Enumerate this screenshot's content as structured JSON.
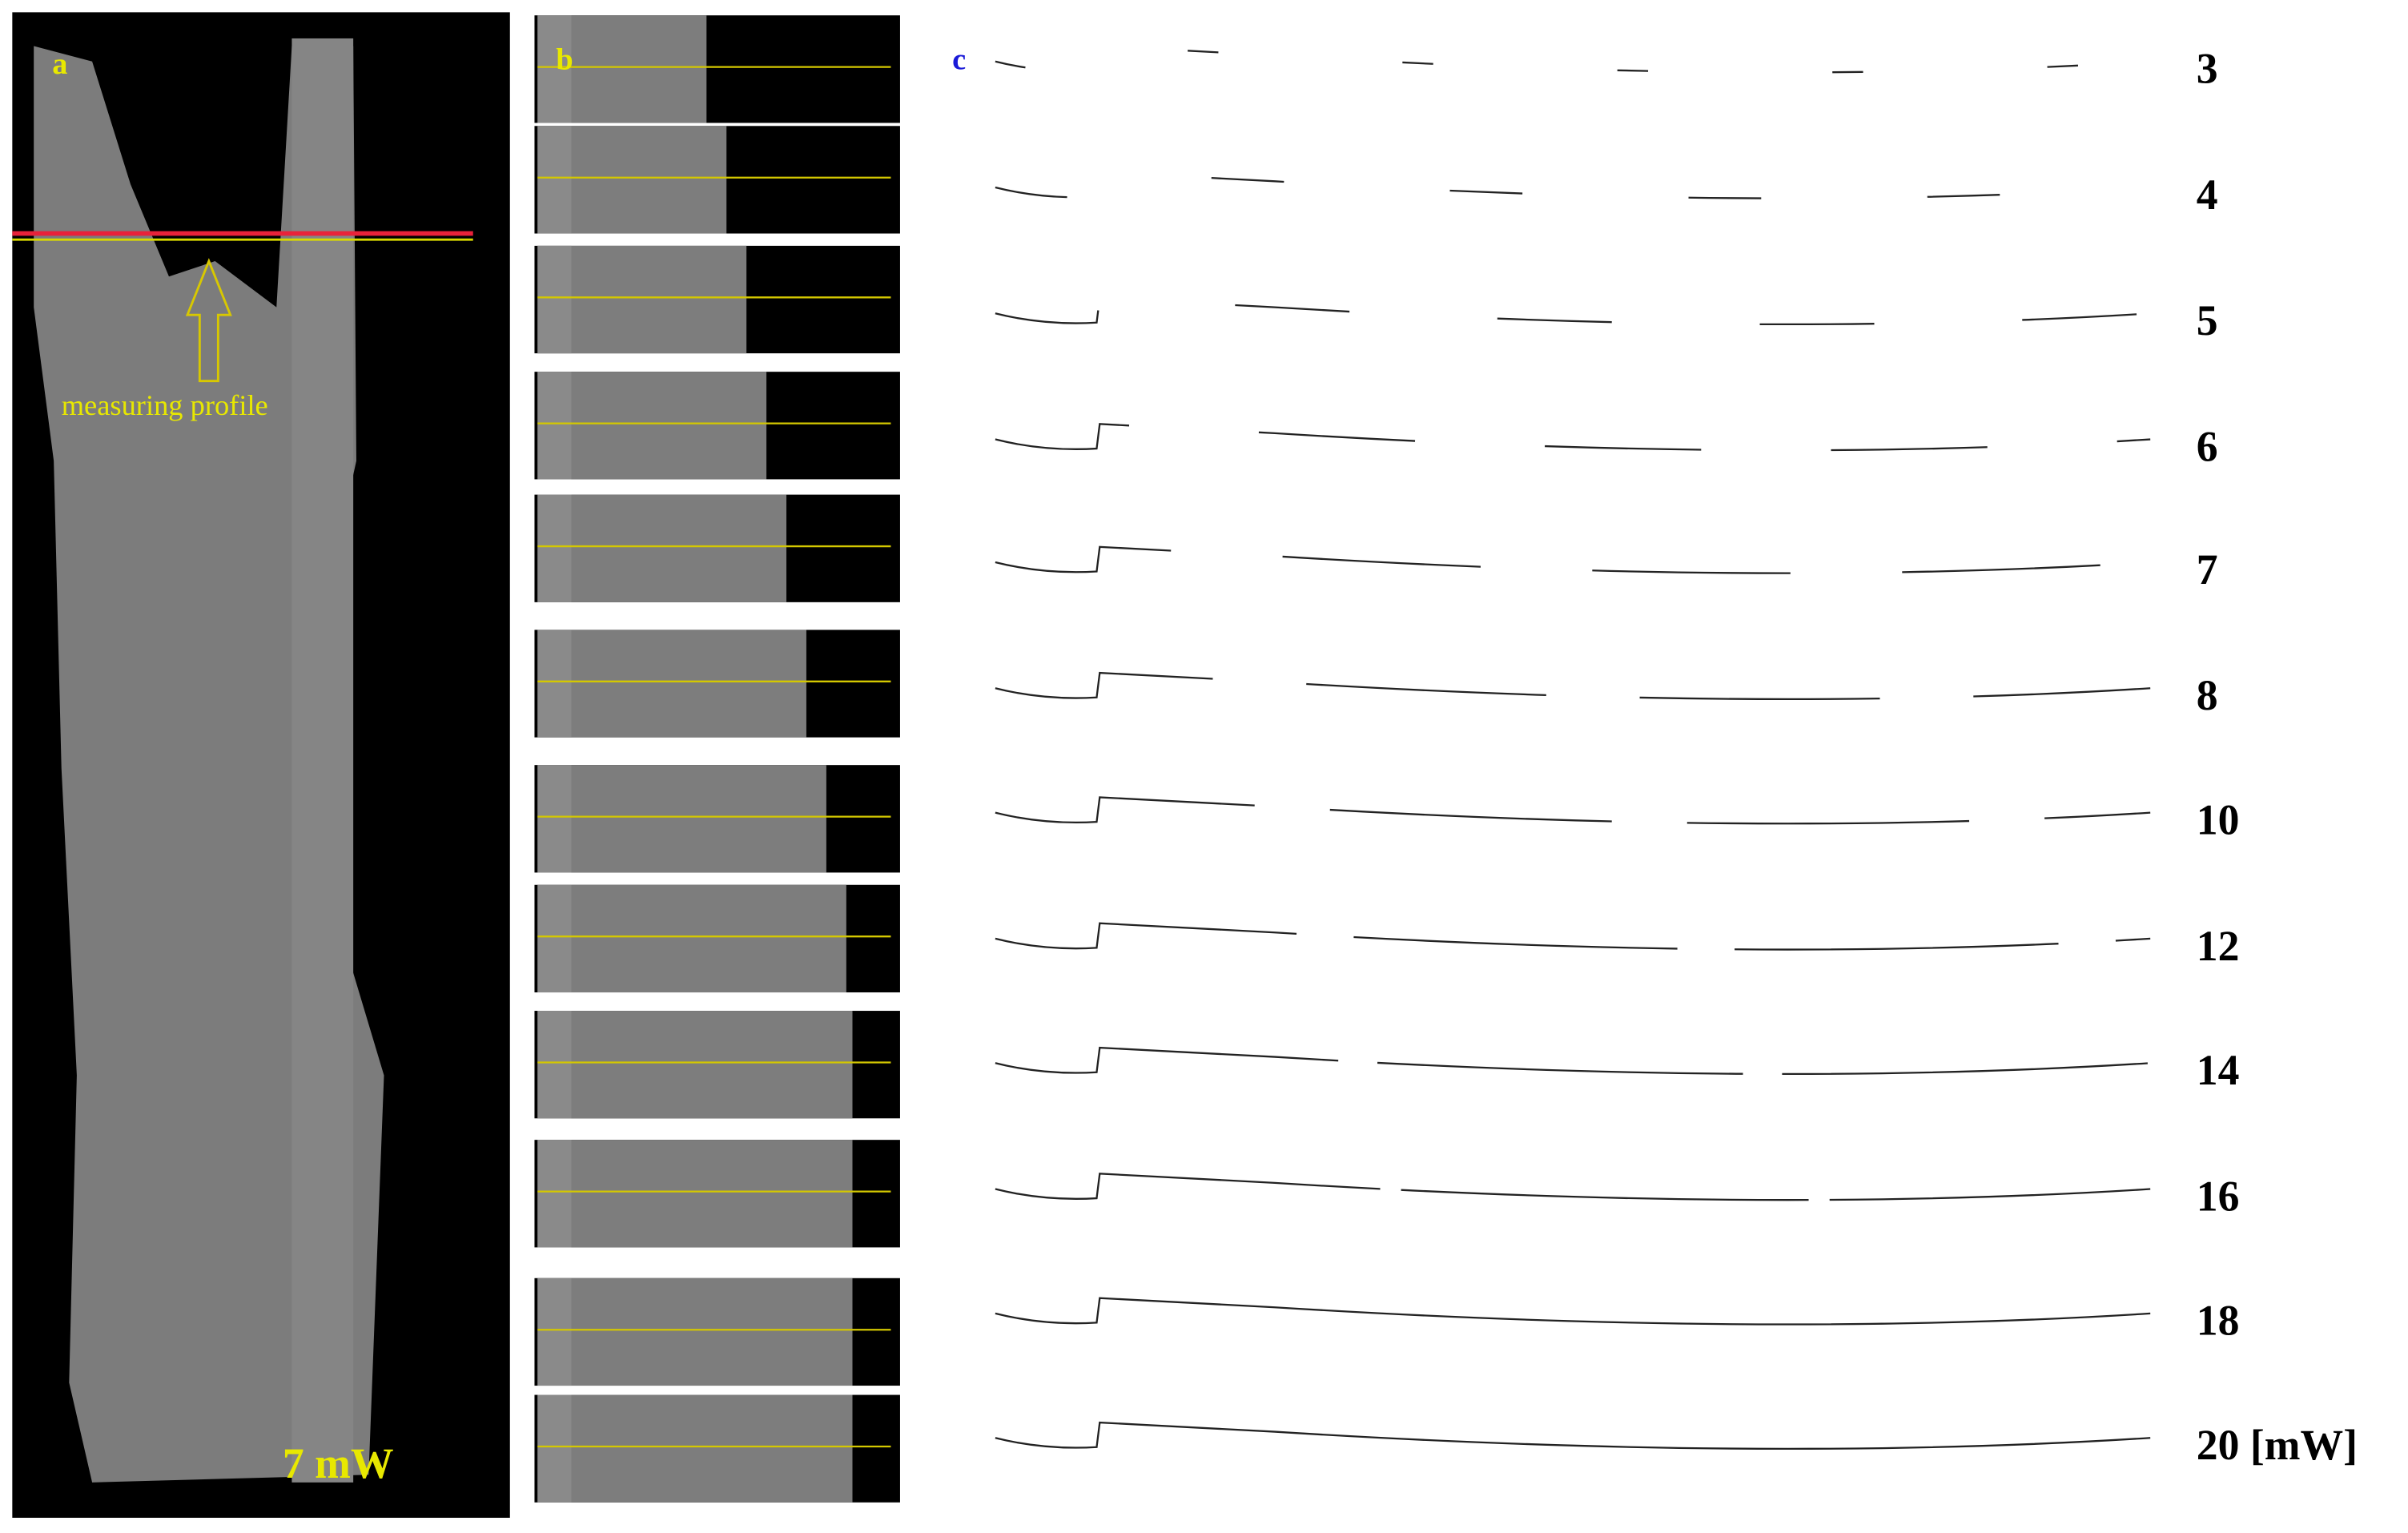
{
  "panels": {
    "a": {
      "label": "a",
      "annotation": "measuring profile",
      "power": "7 mW"
    },
    "b": {
      "label": "b"
    },
    "c": {
      "label": "c",
      "rows": [
        "3",
        "4",
        "5",
        "6",
        "7",
        "8",
        "10",
        "12",
        "14",
        "16",
        "18",
        "20 [mW]"
      ]
    }
  }
}
